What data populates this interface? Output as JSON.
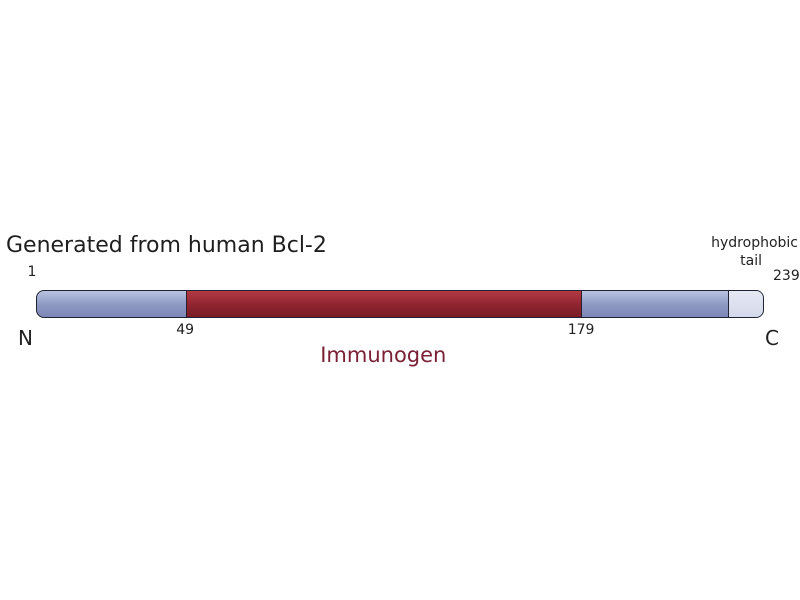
{
  "diagram": {
    "title": "Generated from human Bcl-2",
    "protein_length": 239,
    "start_label": "1",
    "end_label": "239",
    "n_terminus": "N",
    "c_terminus": "C",
    "immunogen": {
      "start": 49,
      "end": 179,
      "start_label": "49",
      "end_label": "179",
      "label": "Immunogen",
      "color": "#8e2430",
      "label_color": "#7a2136"
    },
    "hydrophobic_tail": {
      "start": 227,
      "end": 239,
      "label_line1": "hydrophobic",
      "label_line2": "tail",
      "color": "#d4d9ea"
    },
    "protein_color": "#8c97c3"
  }
}
